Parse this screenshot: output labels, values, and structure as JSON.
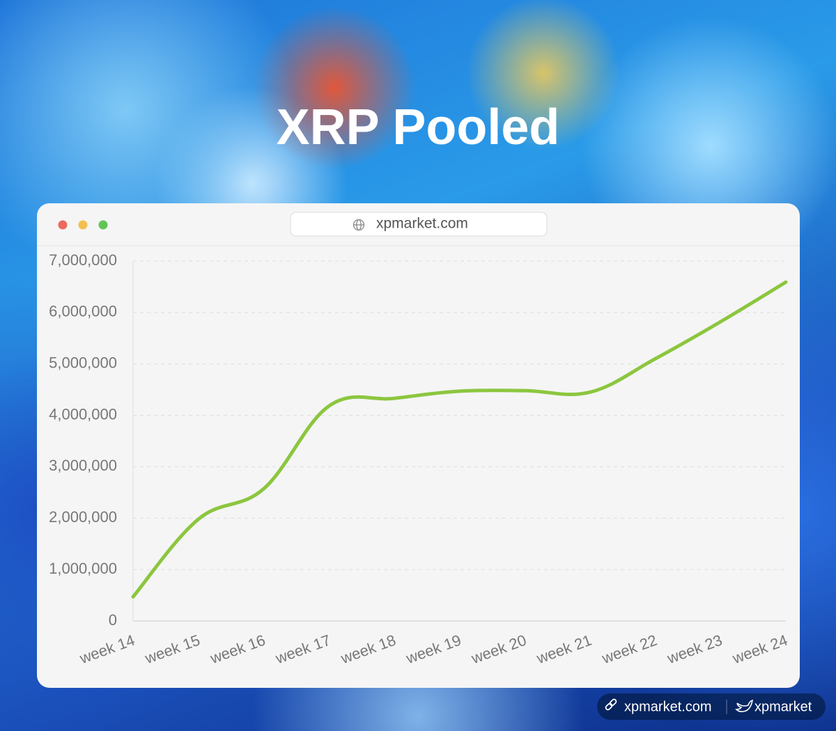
{
  "chart_data": {
    "type": "line",
    "title": "XRP Pooled",
    "categories": [
      "week 14",
      "week 15",
      "week 16",
      "week 17",
      "week 18",
      "week 19",
      "week 20",
      "week 21",
      "week 22",
      "week 23",
      "week 24"
    ],
    "values": [
      470000,
      1980000,
      2570000,
      4180000,
      4330000,
      4470000,
      4480000,
      4450000,
      5100000,
      5820000,
      6590000
    ],
    "color": "#8cc63f",
    "ylim": [
      0,
      7000000
    ],
    "yticks": [
      0,
      {
        "value": 1000000,
        "label": "1,000,000"
      },
      {
        "value": 2000000,
        "label": "2,000,000"
      },
      {
        "value": 3000000,
        "label": "3,000,000"
      },
      {
        "value": 4000000,
        "label": "4,000,000"
      },
      {
        "value": 5000000,
        "label": "5,000,000"
      },
      {
        "value": 6000000,
        "label": "6,000,000"
      },
      {
        "value": 7000000,
        "label": "7,000,000"
      }
    ],
    "grid": true
  },
  "window": {
    "url": "xpmarket.com"
  },
  "footer": {
    "site": "xpmarket.com",
    "handle": "xpmarket"
  }
}
